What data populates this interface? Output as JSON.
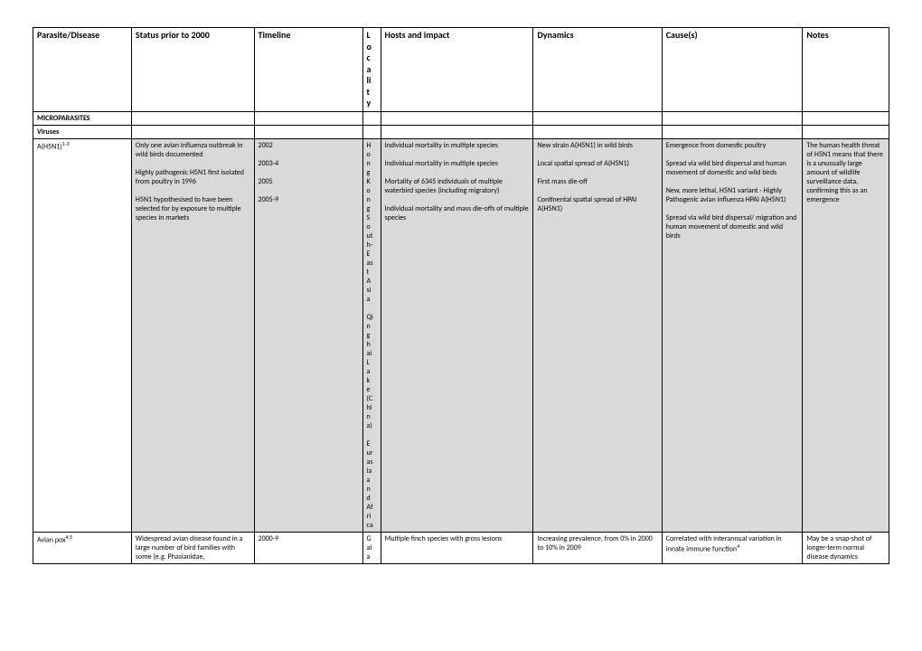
{
  "headers": {
    "parasite": "Parasite/Disease",
    "status": "Status prior to 2000",
    "timeline": "Timeline",
    "locality": "L\no\nc\na\nli\nt\ny",
    "hosts": "Hosts and impact",
    "dynamics": "Dynamics",
    "causes": "Cause(s)",
    "notes": "Notes"
  },
  "sections": {
    "microparasites": "MICROPARASITES",
    "viruses": "Viruses"
  },
  "rows": {
    "h5n1": {
      "name": "A(H5N1)",
      "ref": "1-3",
      "status": "Only one avian influenza outbreak in wild birds documented\n\nHighly pathogenic H5N1 first isolated from poultry in 1996\n\nH5N1 hypothesised to have been selected for by exposure to multiple species in markets",
      "timeline": "2002\n\n2003-4\n\n2005\n\n2005-9",
      "locality": "H\no\nn\ng\nK\no\nn\ng\nS\no\nut\nh-\nE\nas\nt\nA\nsi\na\n\nQi\nn\ng\nh\nai\nL\na\nk\ne\n(C\nhi\nn\na)\n\nE\nur\nas\nia\na\nn\nd\nAf\nri\nca",
      "hosts": "Individual mortality in multiple species\n\nIndividual mortality in multiple species\n\nMortality of 6345 individuals of multiple waterbird species (including migratory)\n\nIndividual mortality and mass die-offs of multiple species",
      "dynamics": "New strain A(H5N1) in wild birds\n\nLocal spatial spread of A(H5N1)\n\nFirst mass die-off\n\nContinental spatial spread of HPAI A(H5N1)",
      "causes": "Emergence from domestic poultry\n\nSpread via wild bird dispersal and human movement of domestic and wild birds\n\nNew, more lethal, H5N1 variant - Highly Pathogenic avian influenza HPAI A(H5N1)\n\nSpread via wild bird dispersal/ migration and human movement of domestic and wild birds",
      "notes": "The human health threat of H5N1 means that there is a unusually large amount of wildlife surveillance data, confirming this as an emergence"
    },
    "avianpox": {
      "name": "Avian pox",
      "ref": "4,5",
      "status": "Widespread avian disease found in a large number of bird families with some (e.g. Phasianidae,",
      "timeline": "2000-9",
      "locality": "G\nal\na",
      "hosts": "Multiple finch species with gross lesions",
      "dynamics": "Increasing prevalence, from 0% in 2000 to 10% in 2009",
      "causes_pre": "Correlated with interannual variation in innate immune function",
      "causes_ref": "4",
      "notes": "May be a snap-shot of longer-term normal disease dynamics"
    }
  }
}
